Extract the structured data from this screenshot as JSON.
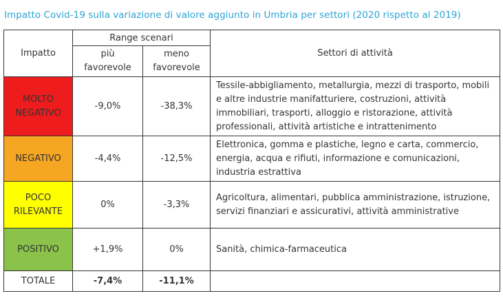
{
  "title": "Impatto Covid-19 sulla variazione di valore aggiunto in Umbria per settori (2020 rispetto al 2019)",
  "header": {
    "impatto": "Impatto",
    "range_scenari": "Range scenari",
    "piu_line1": "più",
    "piu_line2": "favorevole",
    "meno_line1": "meno",
    "meno_line2": "favorevole",
    "settori": "Settori di attività"
  },
  "colors": {
    "molto_negativo": "#ee1c1c",
    "negativo": "#f5a623",
    "poco_rilevante": "#ffff00",
    "positivo": "#8bc34a",
    "title": "#2aa3d6"
  },
  "rows": [
    {
      "impatto_line1": "MOLTO",
      "impatto_line2": "NEGATIVO",
      "piu": "-9,0%",
      "meno": "-38,3%",
      "settori": "Tessile-abbigliamento, metallurgia, mezzi di trasporto, mobili e altre industrie manifatturiere, costruzioni, attività immobiliari, trasporti, alloggio e ristorazione, attività professionali, attività artistiche e intrattenimento"
    },
    {
      "impatto_line1": "NEGATIVO",
      "impatto_line2": "",
      "piu": "-4,4%",
      "meno": "-12,5%",
      "settori": "Elettronica, gomma e plastiche, legno e carta, commercio, energia, acqua e rifiuti, informazione e comunicazioni, industria estrattiva"
    },
    {
      "impatto_line1": "POCO",
      "impatto_line2": "RILEVANTE",
      "piu": "0%",
      "meno": "-3,3%",
      "settori": "Agricoltura, alimentari, pubblica amministrazione, istruzione, servizi finanziari e assicurativi, attività amministrative"
    },
    {
      "impatto_line1": "POSITIVO",
      "impatto_line2": "",
      "piu": "+1,9%",
      "meno": "0%",
      "settori": "Sanità, chimica-farmaceutica"
    }
  ],
  "totale": {
    "label": "TOTALE",
    "piu": "-7,4%",
    "meno": "-11,1%"
  }
}
